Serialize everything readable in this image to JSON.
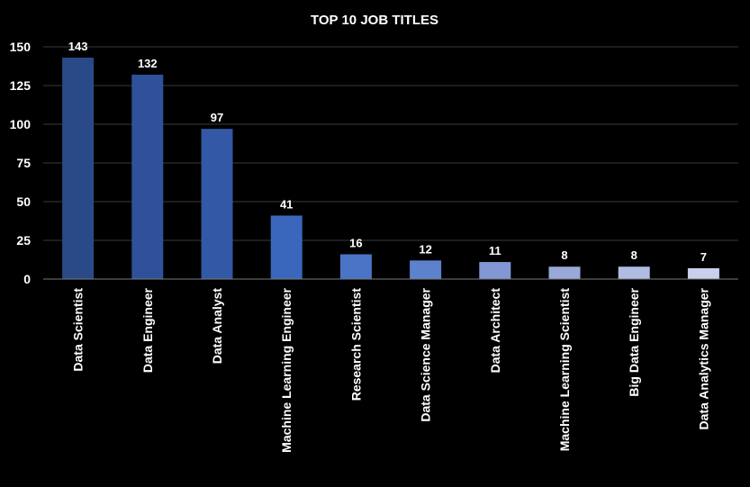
{
  "chart_data": {
    "type": "bar",
    "title": "TOP 10 JOB TITLES",
    "xlabel": "",
    "ylabel": "",
    "categories": [
      "Data Scientist",
      "Data Engineer",
      "Data Analyst",
      "Machine Learning Engineer",
      "Research Scientist",
      "Data Science Manager",
      "Data Architect",
      "Machine Learning Scientist",
      "Big Data Engineer",
      "Data Analytics Manager"
    ],
    "values": [
      143,
      132,
      97,
      41,
      16,
      12,
      11,
      8,
      8,
      7
    ],
    "data_labels": [
      "143",
      "132",
      "97",
      "41",
      "16",
      "12",
      "11",
      "8",
      "8",
      "7"
    ],
    "ylim": [
      0,
      150
    ],
    "yticks": [
      0,
      25,
      50,
      75,
      100,
      125,
      150
    ],
    "ytick_labels": [
      "0",
      "25",
      "50",
      "75",
      "100",
      "125",
      "150"
    ],
    "grid": true,
    "legend": "none",
    "bar_colors": [
      "#2a4a87",
      "#2e519a",
      "#3258a6",
      "#3a66bb",
      "#4a74c6",
      "#5c82cd",
      "#8198d4",
      "#98a8d9",
      "#b0bde3",
      "#c8d0ec"
    ],
    "background_color": "#000000",
    "text_color": "#ffffff"
  }
}
